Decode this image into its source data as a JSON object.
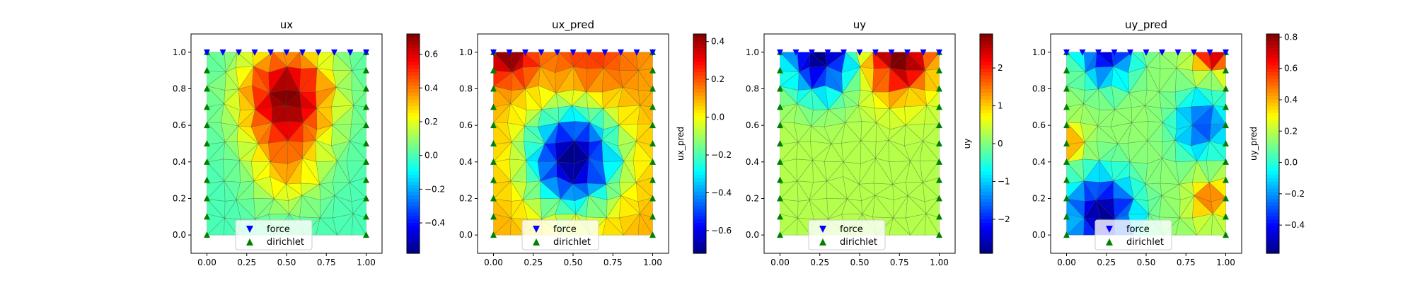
{
  "figure": {
    "background": "#ffffff"
  },
  "legend": {
    "items": [
      {
        "label": "force",
        "marker": "triangle-down",
        "color": "#0000ff"
      },
      {
        "label": "dirichlet",
        "marker": "triangle-up",
        "color": "#008000"
      }
    ]
  },
  "colormap": "jet",
  "chart_data": [
    {
      "type": "heatmap",
      "title": "ux",
      "colorbar_label": "",
      "xlim": [
        -0.1,
        1.1
      ],
      "ylim": [
        -0.1,
        1.1
      ],
      "xticks": [
        0.0,
        0.25,
        0.5,
        0.75,
        1.0
      ],
      "xtick_labels": [
        "0.00",
        "0.25",
        "0.50",
        "0.75",
        "1.00"
      ],
      "yticks": [
        0.0,
        0.2,
        0.4,
        0.6,
        0.8,
        1.0
      ],
      "ytick_labels": [
        "0.0",
        "0.2",
        "0.4",
        "0.6",
        "0.8",
        "1.0"
      ],
      "color_range": [
        -0.58,
        0.72
      ],
      "colorbar_ticks": [
        -0.4,
        -0.2,
        0.0,
        0.2,
        0.4,
        0.6
      ],
      "colorbar_tick_labels": [
        "−0.4",
        "−0.2",
        "0.0",
        "0.2",
        "0.4",
        "0.6"
      ],
      "base_value": 0.0,
      "blobs": [
        {
          "x": 0.5,
          "y": 0.75,
          "amp": 0.72,
          "s": 0.2
        },
        {
          "x": 0.5,
          "y": 0.35,
          "amp": 0.25,
          "s": 0.15
        }
      ],
      "legend_position": "lower-center"
    },
    {
      "type": "heatmap",
      "title": "ux_pred",
      "colorbar_label": "ux_pred",
      "xlim": [
        -0.1,
        1.1
      ],
      "ylim": [
        -0.1,
        1.1
      ],
      "xticks": [
        0.0,
        0.25,
        0.5,
        0.75,
        1.0
      ],
      "xtick_labels": [
        "0.00",
        "0.25",
        "0.50",
        "0.75",
        "1.00"
      ],
      "yticks": [
        0.0,
        0.2,
        0.4,
        0.6,
        0.8,
        1.0
      ],
      "ytick_labels": [
        "0.0",
        "0.2",
        "0.4",
        "0.6",
        "0.8",
        "1.0"
      ],
      "color_range": [
        -0.72,
        0.44
      ],
      "colorbar_ticks": [
        -0.6,
        -0.4,
        -0.2,
        0.0,
        0.2,
        0.4
      ],
      "colorbar_tick_labels": [
        "−0.6",
        "−0.4",
        "−0.2",
        "0.0",
        "0.2",
        "0.4"
      ],
      "base_value": 0.1,
      "blobs": [
        {
          "x": 0.5,
          "y": 0.42,
          "amp": -0.82,
          "s": 0.2
        },
        {
          "x": 0.1,
          "y": 0.98,
          "amp": 0.33,
          "s": 0.1
        },
        {
          "x": 0.6,
          "y": 1.0,
          "amp": 0.15,
          "s": 0.2
        }
      ],
      "legend_position": "lower-center"
    },
    {
      "type": "heatmap",
      "title": "uy",
      "colorbar_label": "uy",
      "xlim": [
        -0.1,
        1.1
      ],
      "ylim": [
        -0.1,
        1.1
      ],
      "xticks": [
        0.0,
        0.25,
        0.5,
        0.75,
        1.0
      ],
      "xtick_labels": [
        "0.00",
        "0.25",
        "0.50",
        "0.75",
        "1.00"
      ],
      "yticks": [
        0.0,
        0.2,
        0.4,
        0.6,
        0.8,
        1.0
      ],
      "ytick_labels": [
        "0.0",
        "0.2",
        "0.4",
        "0.6",
        "0.8",
        "1.0"
      ],
      "color_range": [
        -2.9,
        2.9
      ],
      "colorbar_ticks": [
        -2,
        -1,
        0,
        1,
        2
      ],
      "colorbar_tick_labels": [
        "−2",
        "−1",
        "0",
        "1",
        "2"
      ],
      "base_value": 0.3,
      "blobs": [
        {
          "x": 0.25,
          "y": 0.98,
          "amp": -3.2,
          "s": 0.15
        },
        {
          "x": 0.75,
          "y": 0.98,
          "amp": 2.8,
          "s": 0.15
        }
      ],
      "legend_position": "lower-center"
    },
    {
      "type": "heatmap",
      "title": "uy_pred",
      "colorbar_label": "uy_pred",
      "xlim": [
        -0.1,
        1.1
      ],
      "ylim": [
        -0.1,
        1.1
      ],
      "xticks": [
        0.0,
        0.25,
        0.5,
        0.75,
        1.0
      ],
      "xtick_labels": [
        "0.00",
        "0.25",
        "0.50",
        "0.75",
        "1.00"
      ],
      "yticks": [
        0.0,
        0.2,
        0.4,
        0.6,
        0.8,
        1.0
      ],
      "ytick_labels": [
        "0.0",
        "0.2",
        "0.4",
        "0.6",
        "0.8",
        "1.0"
      ],
      "color_range": [
        -0.58,
        0.82
      ],
      "colorbar_ticks": [
        -0.4,
        -0.2,
        0.0,
        0.2,
        0.4,
        0.6,
        0.8
      ],
      "colorbar_tick_labels": [
        "−0.4",
        "−0.2",
        "0.0",
        "0.2",
        "0.4",
        "0.6",
        "0.8"
      ],
      "base_value": 0.15,
      "blobs": [
        {
          "x": 0.25,
          "y": 1.0,
          "amp": -0.6,
          "s": 0.12
        },
        {
          "x": 0.92,
          "y": 1.0,
          "amp": 0.6,
          "s": 0.08
        },
        {
          "x": 0.22,
          "y": 0.12,
          "amp": -0.7,
          "s": 0.15
        },
        {
          "x": 0.9,
          "y": 0.2,
          "amp": 0.35,
          "s": 0.08
        },
        {
          "x": 0.85,
          "y": 0.6,
          "amp": -0.45,
          "s": 0.12
        },
        {
          "x": 0.02,
          "y": 0.5,
          "amp": 0.3,
          "s": 0.07
        }
      ],
      "legend_position": "lower-center"
    }
  ]
}
